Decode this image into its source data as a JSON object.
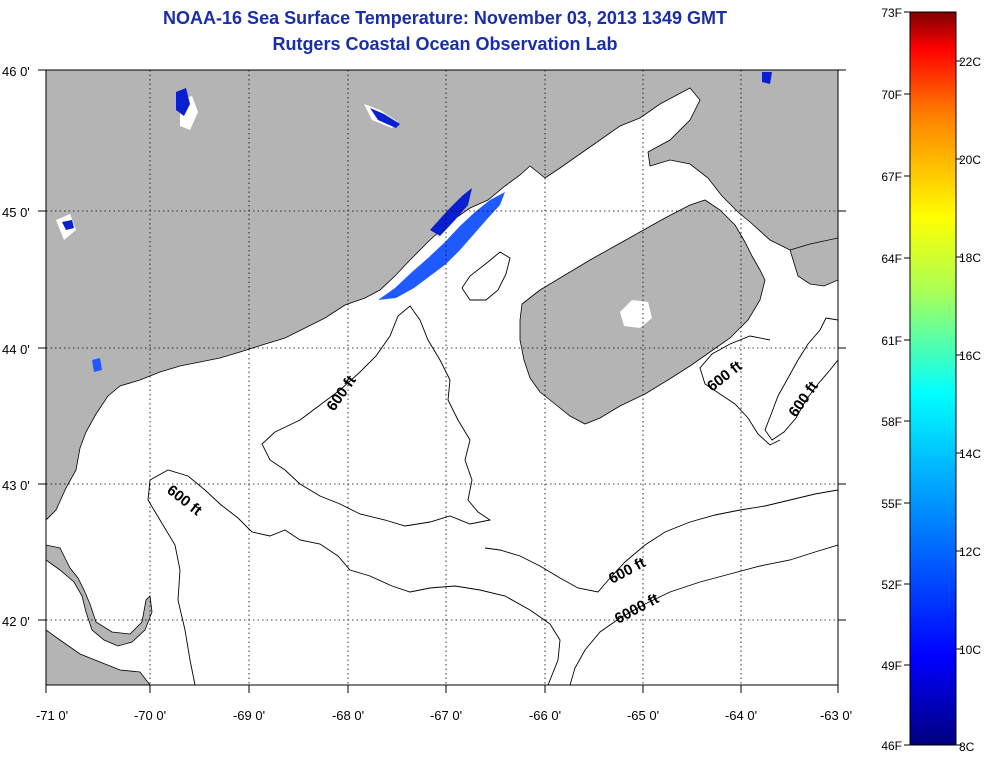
{
  "title": "NOAA-16 Sea Surface Temperature:  November 03, 2013 1349 GMT",
  "subtitle": "Rutgers Coastal Ocean Observation Lab",
  "map": {
    "lon_range": [
      -71,
      -63
    ],
    "lat_range": [
      41.5,
      46.0
    ],
    "lon_ticks": [
      "-71 0'",
      "-70 0'",
      "-69 0'",
      "-68 0'",
      "-67 0'",
      "-66 0'",
      "-65 0'",
      "-64 0'",
      "-63 0'"
    ],
    "lat_ticks": [
      "46 0'",
      "45 0'",
      "44 0'",
      "43 0'",
      "42 0'"
    ],
    "grid": "dotted",
    "land_color": "#b4b4b4",
    "ocean_color": "#ffffff",
    "contour_labels": [
      "600 ft",
      "600 ft",
      "600 ft",
      "600 ft",
      "600 ft",
      "6000 ft"
    ]
  },
  "colorbar": {
    "fahrenheit_labels": [
      "73F",
      "70F",
      "67F",
      "64F",
      "61F",
      "58F",
      "55F",
      "52F",
      "49F",
      "46F"
    ],
    "celsius_labels": [
      "22C",
      "20C",
      "18C",
      "16C",
      "14C",
      "12C",
      "10C",
      "8C"
    ],
    "colors": [
      "#7f0000",
      "#ff0000",
      "#ff7f00",
      "#ffff00",
      "#7fff7f",
      "#00ffff",
      "#007fff",
      "#0000ff",
      "#00007f"
    ]
  }
}
